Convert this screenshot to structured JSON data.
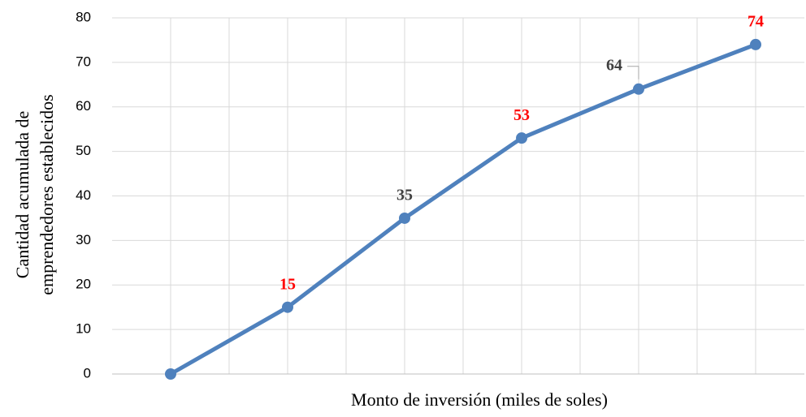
{
  "chart_data": {
    "type": "line",
    "x_label": "Monto de inversión (miles de soles)",
    "y_label": [
      "Cantidad  acumulada  de",
      "emprendedores establecidos"
    ],
    "categories": [
      null,
      null,
      null,
      null,
      null,
      null
    ],
    "series": [
      {
        "name": null,
        "color": "#4f81bd",
        "values": [
          0,
          15,
          35,
          53,
          64,
          74
        ]
      }
    ],
    "label_colors": [
      null,
      "#ff0000",
      "#404040",
      "#ff0000",
      "#404040",
      "#ff0000"
    ],
    "ylim": [
      0,
      80
    ],
    "yticks": [
      0,
      10,
      20,
      30,
      40,
      50,
      60,
      70,
      80
    ],
    "grid": true
  }
}
